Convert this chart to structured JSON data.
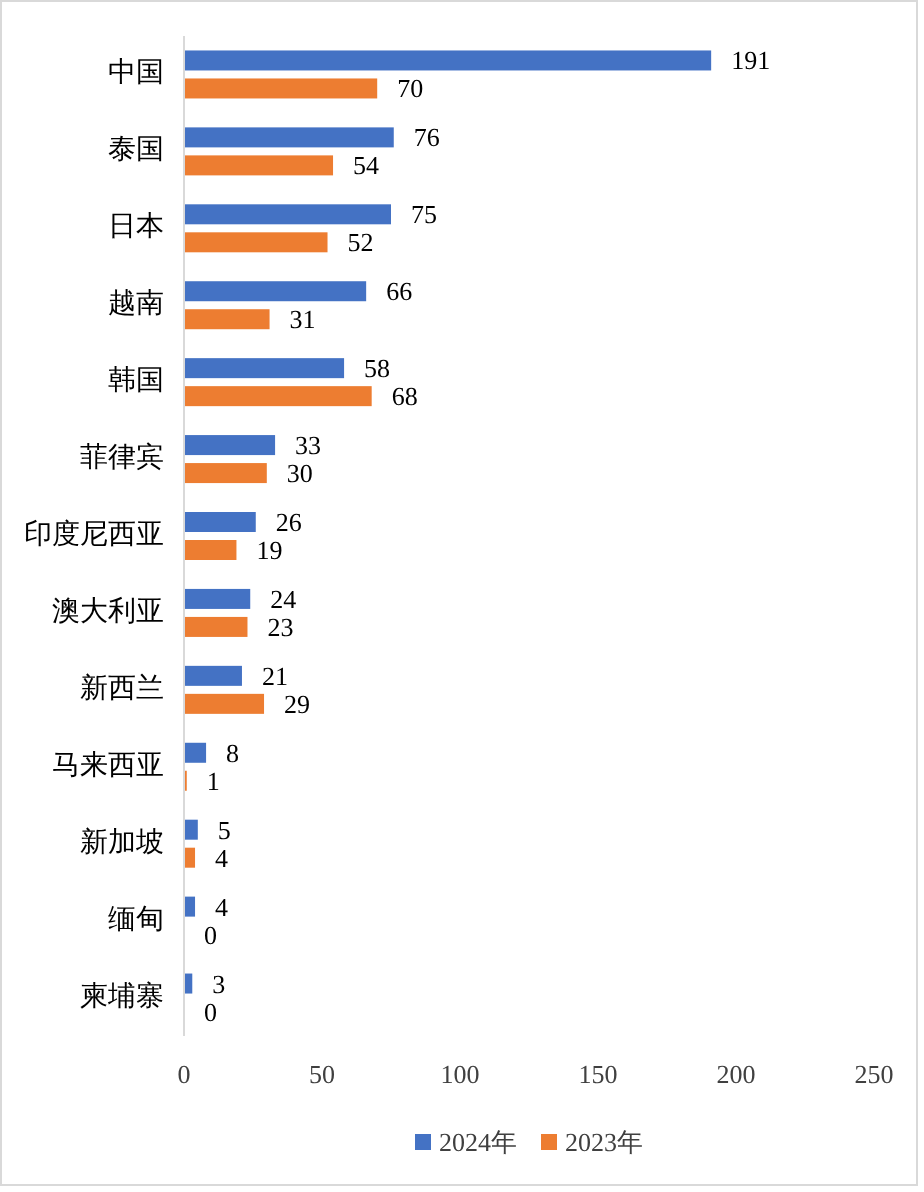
{
  "chart_data": {
    "type": "bar",
    "orientation": "horizontal",
    "categories": [
      "中国",
      "泰国",
      "日本",
      "越南",
      "韩国",
      "菲律宾",
      "印度尼西亚",
      "澳大利亚",
      "新西兰",
      "马来西亚",
      "新加坡",
      "缅甸",
      "柬埔寨"
    ],
    "series": [
      {
        "name": "2024年",
        "color": "#4472c4",
        "values": [
          191,
          76,
          75,
          66,
          58,
          33,
          26,
          24,
          21,
          8,
          5,
          4,
          3
        ]
      },
      {
        "name": "2023年",
        "color": "#ed7d31",
        "values": [
          70,
          54,
          52,
          31,
          68,
          30,
          19,
          23,
          29,
          1,
          4,
          0,
          0
        ]
      }
    ],
    "xlim": [
      0,
      250
    ],
    "xticks": [
      0,
      50,
      100,
      150,
      200,
      250
    ],
    "data_labels": true,
    "legend": "bottom",
    "grid": false
  }
}
